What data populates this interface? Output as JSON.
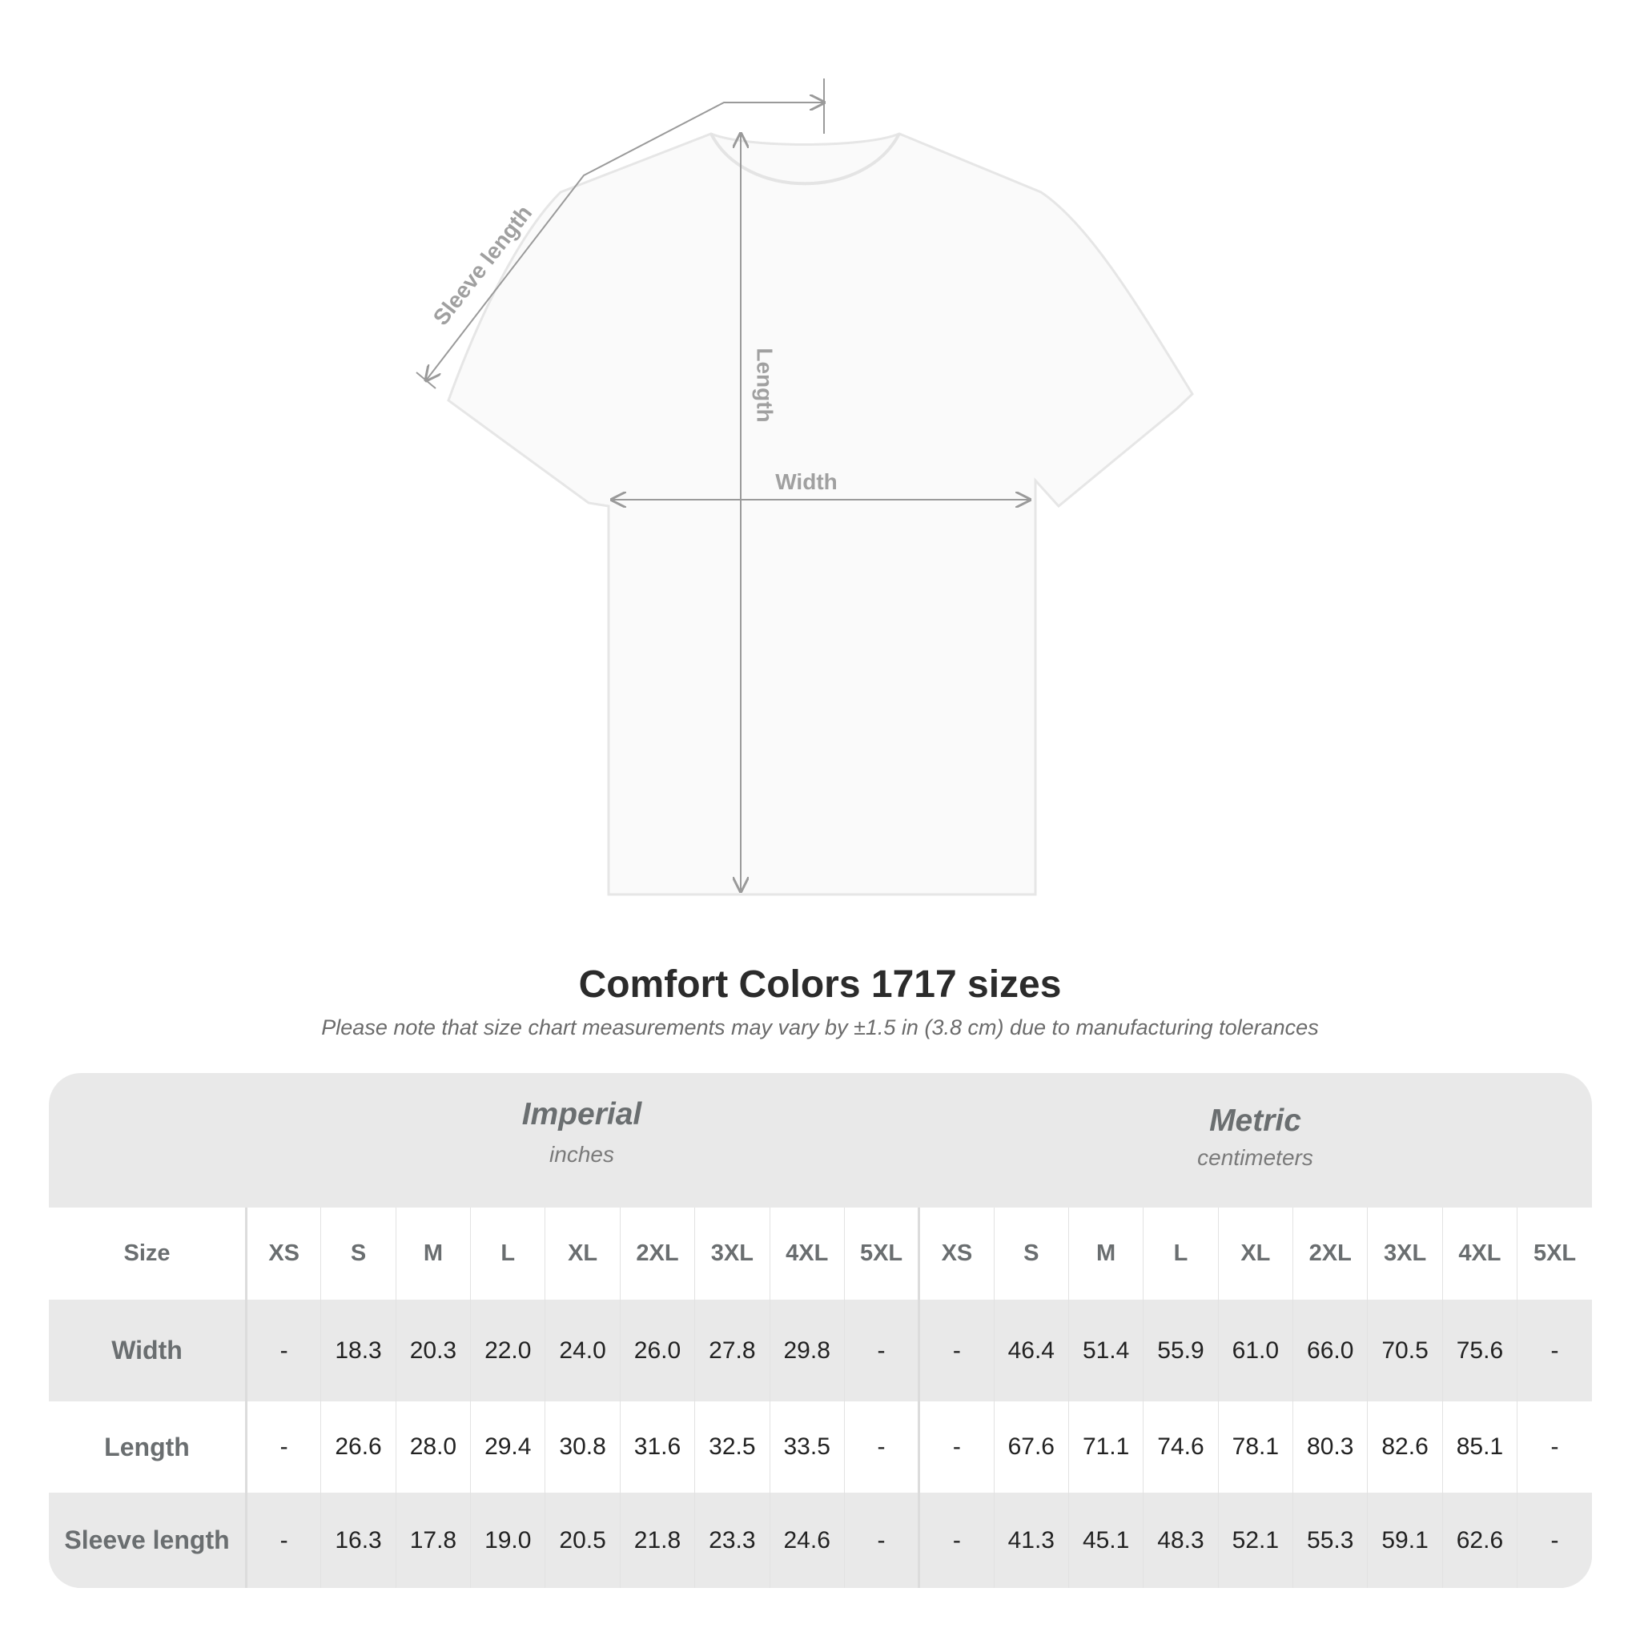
{
  "diagram": {
    "labels": {
      "sleeve": "Sleeve length",
      "length": "Length",
      "width": "Width"
    }
  },
  "title": "Comfort Colors 1717 sizes",
  "subtitle": "Please note that size chart measurements may vary by ±1.5 in (3.8 cm) due to manufacturing tolerances",
  "table": {
    "imperial": {
      "label": "Imperial",
      "unit": "inches"
    },
    "metric": {
      "label": "Metric",
      "unit": "centimeters"
    },
    "size_label": "Size",
    "sizes": [
      "XS",
      "S",
      "M",
      "L",
      "XL",
      "2XL",
      "3XL",
      "4XL",
      "5XL"
    ],
    "rows": [
      {
        "label": "Width",
        "imperial": [
          "-",
          "18.3",
          "20.3",
          "22.0",
          "24.0",
          "26.0",
          "27.8",
          "29.8",
          "-"
        ],
        "metric": [
          "-",
          "46.4",
          "51.4",
          "55.9",
          "61.0",
          "66.0",
          "70.5",
          "75.6",
          "-"
        ]
      },
      {
        "label": "Length",
        "imperial": [
          "-",
          "26.6",
          "28.0",
          "29.4",
          "30.8",
          "31.6",
          "32.5",
          "33.5",
          "-"
        ],
        "metric": [
          "-",
          "67.6",
          "71.1",
          "74.6",
          "78.1",
          "80.3",
          "82.6",
          "85.1",
          "-"
        ]
      },
      {
        "label": "Sleeve length",
        "imperial": [
          "-",
          "16.3",
          "17.8",
          "19.0",
          "20.5",
          "21.8",
          "23.3",
          "24.6",
          "-"
        ],
        "metric": [
          "-",
          "41.3",
          "45.1",
          "48.3",
          "52.1",
          "55.3",
          "59.1",
          "62.6",
          "-"
        ]
      }
    ]
  },
  "colors": {
    "panel": "#e9e9e9",
    "label_text": "#6a6e70",
    "measure_line": "#9a9a9a"
  }
}
